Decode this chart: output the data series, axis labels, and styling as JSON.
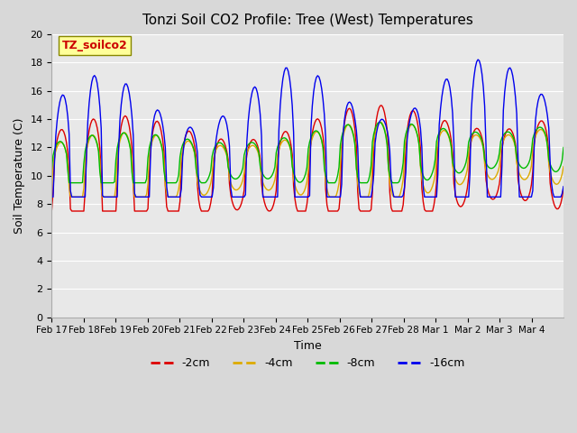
{
  "title": "Tonzi Soil CO2 Profile: Tree (West) Temperatures",
  "xlabel": "Time",
  "ylabel": "Soil Temperature (C)",
  "ylim": [
    0,
    20
  ],
  "yticks": [
    0,
    2,
    4,
    6,
    8,
    10,
    12,
    14,
    16,
    18,
    20
  ],
  "xtick_labels": [
    "Feb 17",
    "Feb 18",
    "Feb 19",
    "Feb 20",
    "Feb 21",
    "Feb 22",
    "Feb 23",
    "Feb 24",
    "Feb 25",
    "Feb 26",
    "Feb 27",
    "Feb 28",
    "Mar 1",
    "Mar 2",
    "Mar 3",
    "Mar 4"
  ],
  "legend_label": "TZ_soilco2",
  "legend_entries": [
    "-2cm",
    "-4cm",
    "-8cm",
    "-16cm"
  ],
  "line_colors": [
    "#dd0000",
    "#ddaa00",
    "#00bb00",
    "#0000ee"
  ],
  "bg_color": "#d8d8d8",
  "plot_bg_color": "#e8e8e8",
  "grid_color": "#ffffff",
  "annotation_bg": "#ffff99",
  "annotation_fg": "#cc0000"
}
